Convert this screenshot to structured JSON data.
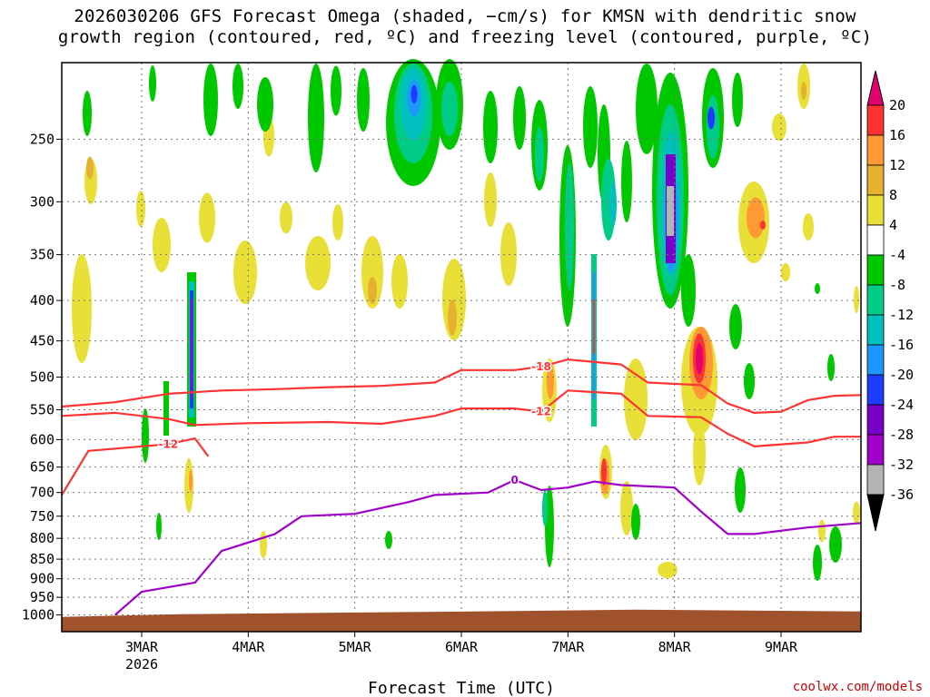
{
  "title_line1": "2026030206 GFS Forecast Omega (shaded, −cm/s) for KMSN with dendritic snow",
  "title_line2": "growth region (contoured, red, ºC) and freezing level (contoured, purple, ºC)",
  "credit": "coolwx.com/models",
  "chart_data": {
    "type": "heatmap",
    "title": "2026030206 GFS Forecast Omega (shaded, −cm/s) for KMSN with dendritic snow growth region (contoured, red, ºC) and freezing level (contoured, purple, ºC)",
    "xlabel": "Forecast Time (UTC)",
    "ylabel": "",
    "x_range": [
      "2026-03-02T06:00Z",
      "2026-03-09T18:00Z"
    ],
    "x_ticks": [
      {
        "date": "2026-03-03",
        "label": "3MAR",
        "sublabel": "2026"
      },
      {
        "date": "2026-03-04",
        "label": "4MAR",
        "sublabel": ""
      },
      {
        "date": "2026-03-05",
        "label": "5MAR",
        "sublabel": ""
      },
      {
        "date": "2026-03-06",
        "label": "6MAR",
        "sublabel": ""
      },
      {
        "date": "2026-03-07",
        "label": "7MAR",
        "sublabel": ""
      },
      {
        "date": "2026-03-08",
        "label": "8MAR",
        "sublabel": ""
      },
      {
        "date": "2026-03-09",
        "label": "9MAR",
        "sublabel": ""
      }
    ],
    "y_scale": "log",
    "y_range": [
      1050,
      200
    ],
    "y_ticks": [
      250,
      300,
      350,
      400,
      450,
      500,
      550,
      600,
      650,
      700,
      750,
      800,
      850,
      900,
      950,
      1000
    ],
    "grid": true,
    "colorbar": {
      "levels": [
        20,
        16,
        12,
        8,
        4,
        -4,
        -8,
        -12,
        -16,
        -20,
        -24,
        -28,
        -32,
        -36
      ],
      "colors": [
        "#e3006f",
        "#ff3232",
        "#ff9933",
        "#e6b030",
        "#e8e036",
        "#ffffff",
        "#00c800",
        "#00cc88",
        "#00bfbf",
        "#1e96ff",
        "#1e3cff",
        "#7800c8",
        "#a000c8",
        "#b4b4b4",
        "#000000"
      ]
    },
    "contours": [
      {
        "label": "-18",
        "color": "#ff3333",
        "points": [
          [
            "2026-03-02T06:00Z",
            545
          ],
          [
            "2026-03-02T18:00Z",
            538
          ],
          [
            "2026-03-03T06:00Z",
            525
          ],
          [
            "2026-03-03T18:00Z",
            520
          ],
          [
            "2026-03-04T06:00Z",
            518
          ],
          [
            "2026-03-04T18:00Z",
            515
          ],
          [
            "2026-03-05T06:00Z",
            513
          ],
          [
            "2026-03-05T18:00Z",
            508
          ],
          [
            "2026-03-06T00:00Z",
            490
          ],
          [
            "2026-03-06T12:00Z",
            490
          ],
          [
            "2026-03-06T18:00Z",
            485
          ],
          [
            "2026-03-07T00:00Z",
            475
          ],
          [
            "2026-03-07T12:00Z",
            482
          ],
          [
            "2026-03-07T18:00Z",
            508
          ],
          [
            "2026-03-08T06:00Z",
            512
          ],
          [
            "2026-03-08T12:00Z",
            540
          ],
          [
            "2026-03-08T18:00Z",
            555
          ],
          [
            "2026-03-09T00:00Z",
            553
          ],
          [
            "2026-03-09T06:00Z",
            535
          ],
          [
            "2026-03-09T12:00Z",
            528
          ],
          [
            "2026-03-09T18:00Z",
            527
          ]
        ]
      },
      {
        "label": "-12",
        "color": "#ff3333",
        "points": [
          [
            "2026-03-02T06:00Z",
            560
          ],
          [
            "2026-03-02T18:00Z",
            555
          ],
          [
            "2026-03-03T06:00Z",
            565
          ],
          [
            "2026-03-03T12:00Z",
            575
          ],
          [
            "2026-03-04T00:00Z",
            572
          ],
          [
            "2026-03-04T18:00Z",
            570
          ],
          [
            "2026-03-05T06:00Z",
            573
          ],
          [
            "2026-03-05T18:00Z",
            560
          ],
          [
            "2026-03-06T00:00Z",
            548
          ],
          [
            "2026-03-06T12:00Z",
            548
          ],
          [
            "2026-03-06T18:00Z",
            553
          ],
          [
            "2026-03-07T00:00Z",
            520
          ],
          [
            "2026-03-07T12:00Z",
            525
          ],
          [
            "2026-03-07T18:00Z",
            560
          ],
          [
            "2026-03-08T06:00Z",
            562
          ],
          [
            "2026-03-08T12:00Z",
            590
          ],
          [
            "2026-03-08T18:00Z",
            612
          ],
          [
            "2026-03-09T06:00Z",
            605
          ],
          [
            "2026-03-09T12:00Z",
            595
          ],
          [
            "2026-03-09T18:00Z",
            595
          ]
        ]
      },
      {
        "label": "-12",
        "color": "#ff3333",
        "points": [
          [
            "2026-03-02T06:00Z",
            705
          ],
          [
            "2026-03-02T12:00Z",
            620
          ],
          [
            "2026-03-03T06:00Z",
            608
          ],
          [
            "2026-03-03T12:00Z",
            598
          ],
          [
            "2026-03-03T15:00Z",
            630
          ]
        ]
      },
      {
        "label": "0",
        "color": "#a000c8",
        "points": [
          [
            "2026-03-02T18:00Z",
            1000
          ],
          [
            "2026-03-03T00:00Z",
            935
          ],
          [
            "2026-03-03T12:00Z",
            910
          ],
          [
            "2026-03-03T18:00Z",
            830
          ],
          [
            "2026-03-04T06:00Z",
            790
          ],
          [
            "2026-03-04T12:00Z",
            750
          ],
          [
            "2026-03-05T00:00Z",
            745
          ],
          [
            "2026-03-05T12:00Z",
            720
          ],
          [
            "2026-03-05T18:00Z",
            705
          ],
          [
            "2026-03-06T06:00Z",
            700
          ],
          [
            "2026-03-06T12:00Z",
            675
          ],
          [
            "2026-03-06T18:00Z",
            695
          ],
          [
            "2026-03-07T00:00Z",
            690
          ],
          [
            "2026-03-07T06:00Z",
            678
          ],
          [
            "2026-03-07T12:00Z",
            685
          ],
          [
            "2026-03-08T00:00Z",
            690
          ],
          [
            "2026-03-08T06:00Z",
            740
          ],
          [
            "2026-03-08T12:00Z",
            790
          ],
          [
            "2026-03-08T18:00Z",
            790
          ],
          [
            "2026-03-09T06:00Z",
            775
          ],
          [
            "2026-03-09T18:00Z",
            765
          ]
        ]
      }
    ],
    "terrain": {
      "color": "#a0522d",
      "surface_pressure": 990
    }
  }
}
